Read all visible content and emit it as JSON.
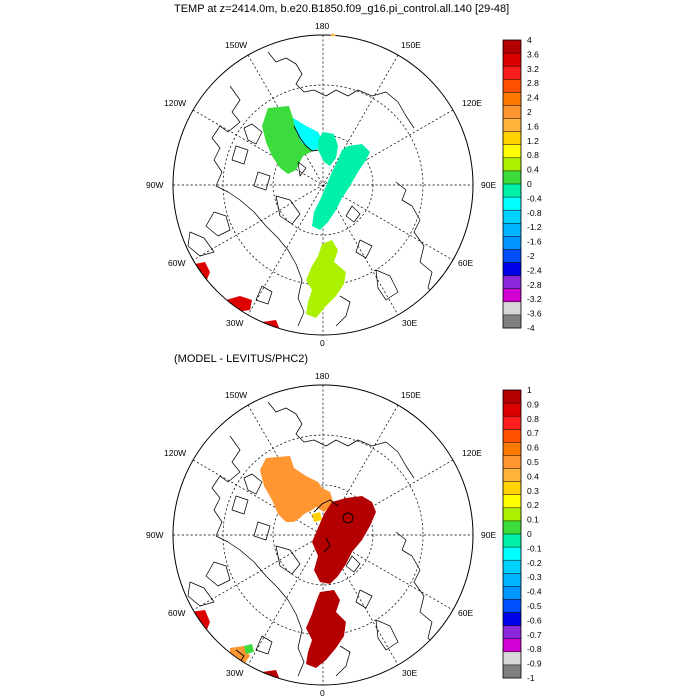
{
  "panels": [
    {
      "title": "TEMP at z=2414.0m, b.e20.B1850.f09_g16.pi_control.all.140 [29-48]",
      "lon_labels": {
        "top": "180",
        "bottom": "0",
        "left": "90W",
        "right": "90E",
        "upper_left": "150W",
        "upper_right": "150E",
        "mid_left": "120W",
        "mid_right": "120E",
        "low_left": "60W",
        "low_right": "60E",
        "bottom_left": "30W",
        "bottom_right": "30E"
      },
      "colorbar": {
        "labels": [
          "4",
          "3.6",
          "3.2",
          "2.8",
          "2.4",
          "2",
          "1.6",
          "1.2",
          "0.8",
          "0.4",
          "0",
          "-0.4",
          "-0.8",
          "-1.2",
          "-1.6",
          "-2",
          "-2.4",
          "-2.8",
          "-3.2",
          "-3.6",
          "-4"
        ],
        "colors": [
          "#b40000",
          "#dc0000",
          "#ff1e1e",
          "#ff5000",
          "#ff7800",
          "#ff9632",
          "#ffb43c",
          "#ffd200",
          "#ffff00",
          "#aaf000",
          "#3cdc3c",
          "#00f0aa",
          "#00ffff",
          "#00d2ff",
          "#00b4ff",
          "#0096ff",
          "#0050ff",
          "#0000e6",
          "#8c28dc",
          "#d200d2",
          "#d7d7d7",
          "#808080"
        ]
      }
    },
    {
      "title": "(MODEL - LEVITUS/PHC2)",
      "lon_labels": {
        "top": "180",
        "bottom": "0",
        "left": "90W",
        "right": "90E",
        "upper_left": "150W",
        "upper_right": "150E",
        "mid_left": "120W",
        "mid_right": "120E",
        "low_left": "60W",
        "low_right": "60E",
        "bottom_left": "30W",
        "bottom_right": "30E"
      },
      "colorbar": {
        "labels": [
          "1",
          "0.9",
          "0.8",
          "0.7",
          "0.6",
          "0.5",
          "0.4",
          "0.3",
          "0.2",
          "0.1",
          "0",
          "-0.1",
          "-0.2",
          "-0.3",
          "-0.4",
          "-0.5",
          "-0.6",
          "-0.7",
          "-0.8",
          "-0.9",
          "-1"
        ],
        "colors": [
          "#b40000",
          "#dc0000",
          "#ff1e1e",
          "#ff5000",
          "#ff7800",
          "#ff9632",
          "#ffb43c",
          "#ffd200",
          "#ffff00",
          "#aaf000",
          "#3cdc3c",
          "#00f0aa",
          "#00ffff",
          "#00d2ff",
          "#00b4ff",
          "#0096ff",
          "#0050ff",
          "#0000e6",
          "#8c28dc",
          "#d200d2",
          "#d7d7d7",
          "#808080"
        ]
      }
    }
  ]
}
